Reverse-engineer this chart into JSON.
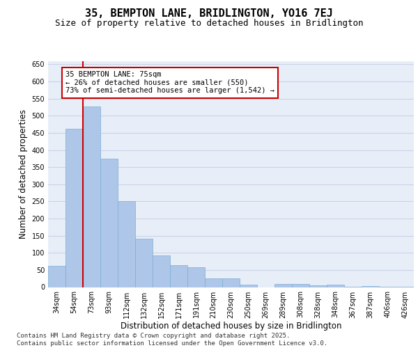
{
  "title_line1": "35, BEMPTON LANE, BRIDLINGTON, YO16 7EJ",
  "title_line2": "Size of property relative to detached houses in Bridlington",
  "xlabel": "Distribution of detached houses by size in Bridlington",
  "ylabel": "Number of detached properties",
  "categories": [
    "34sqm",
    "54sqm",
    "73sqm",
    "93sqm",
    "112sqm",
    "132sqm",
    "152sqm",
    "171sqm",
    "191sqm",
    "210sqm",
    "230sqm",
    "250sqm",
    "269sqm",
    "289sqm",
    "308sqm",
    "328sqm",
    "348sqm",
    "367sqm",
    "387sqm",
    "406sqm",
    "426sqm"
  ],
  "values": [
    62,
    463,
    528,
    374,
    250,
    142,
    93,
    63,
    57,
    26,
    26,
    8,
    0,
    10,
    10,
    5,
    7,
    2,
    3,
    2,
    2
  ],
  "bar_color": "#aec6e8",
  "bar_edge_color": "#7aafd4",
  "vline_x_index": 2,
  "vline_color": "#cc0000",
  "annotation_text": "35 BEMPTON LANE: 75sqm\n← 26% of detached houses are smaller (550)\n73% of semi-detached houses are larger (1,542) →",
  "annotation_box_color": "#ffffff",
  "annotation_box_edge_color": "#cc0000",
  "ylim": [
    0,
    660
  ],
  "yticks": [
    0,
    50,
    100,
    150,
    200,
    250,
    300,
    350,
    400,
    450,
    500,
    550,
    600,
    650
  ],
  "grid_color": "#c8d4e8",
  "background_color": "#e8eef8",
  "footer_line1": "Contains HM Land Registry data © Crown copyright and database right 2025.",
  "footer_line2": "Contains public sector information licensed under the Open Government Licence v3.0.",
  "title_fontsize": 11,
  "subtitle_fontsize": 9,
  "tick_fontsize": 7,
  "label_fontsize": 8.5,
  "footer_fontsize": 6.5,
  "annot_fontsize": 7.5
}
